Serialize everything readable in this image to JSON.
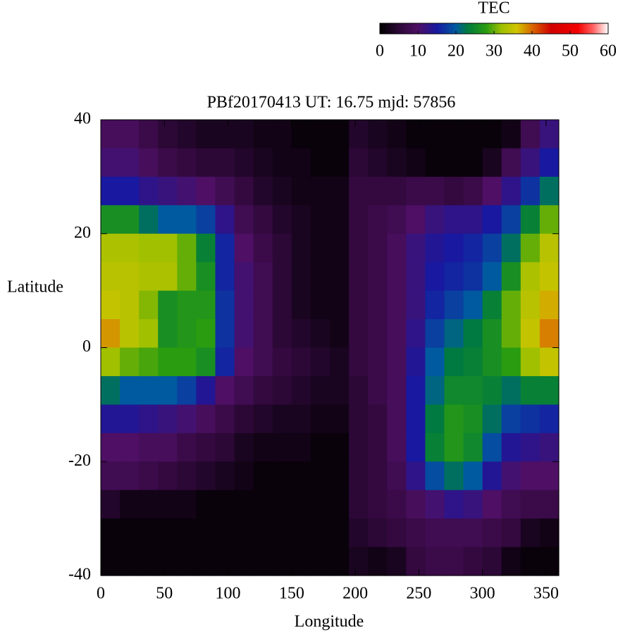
{
  "chart_data": {
    "type": "heatmap",
    "title": "PBf20170413  UT: 16.75  mjd: 57856",
    "x_label": "Longitude",
    "y_label": "Latitude",
    "xlim": [
      0,
      360
    ],
    "ylim": [
      -40,
      40
    ],
    "xticks": [
      0,
      50,
      100,
      150,
      200,
      250,
      300,
      350
    ],
    "yticks": [
      -40,
      -20,
      0,
      20,
      40
    ],
    "x": [
      7.5,
      22.5,
      37.5,
      52.5,
      67.5,
      82.5,
      97.5,
      112.5,
      127.5,
      142.5,
      157.5,
      172.5,
      187.5,
      202.5,
      217.5,
      232.5,
      247.5,
      262.5,
      277.5,
      292.5,
      307.5,
      322.5,
      337.5,
      352.5
    ],
    "y": [
      37.5,
      32.5,
      27.5,
      22.5,
      17.5,
      12.5,
      7.5,
      2.5,
      -2.5,
      -7.5,
      -12.5,
      -17.5,
      -22.5,
      -27.5,
      -32.5,
      -37.5
    ],
    "z": [
      [
        9,
        9,
        7,
        5,
        4,
        3,
        3,
        3,
        2,
        2,
        1,
        1,
        1,
        4,
        3,
        2,
        1,
        1,
        1,
        1,
        1,
        2,
        8,
        12
      ],
      [
        11,
        11,
        9,
        7,
        6,
        5,
        5,
        4,
        3,
        2,
        2,
        1,
        1,
        5,
        4,
        3,
        2,
        1,
        1,
        1,
        3,
        8,
        12,
        15
      ],
      [
        15,
        15,
        13,
        12,
        11,
        10,
        8,
        6,
        4,
        3,
        2,
        2,
        2,
        6,
        6,
        6,
        7,
        7,
        6,
        7,
        10,
        13,
        17,
        22
      ],
      [
        26,
        26,
        22,
        20,
        20,
        18,
        13,
        8,
        6,
        4,
        3,
        2,
        2,
        6,
        7,
        8,
        10,
        12,
        13,
        13,
        15,
        18,
        24,
        30
      ],
      [
        33,
        33,
        32,
        32,
        30,
        24,
        16,
        10,
        7,
        5,
        3,
        2,
        2,
        6,
        7,
        9,
        12,
        14,
        15,
        16,
        18,
        22,
        30,
        34
      ],
      [
        34,
        34,
        33,
        33,
        30,
        26,
        16,
        11,
        8,
        5,
        3,
        2,
        2,
        6,
        7,
        9,
        12,
        15,
        16,
        17,
        20,
        26,
        33,
        35
      ],
      [
        35,
        34,
        31,
        26,
        27,
        27,
        17,
        11,
        8,
        5,
        3,
        2,
        2,
        6,
        7,
        9,
        12,
        16,
        18,
        20,
        24,
        30,
        34,
        37
      ],
      [
        38,
        34,
        32,
        26,
        27,
        28,
        17,
        11,
        8,
        5,
        4,
        3,
        2,
        6,
        7,
        9,
        13,
        18,
        21,
        23,
        26,
        30,
        35,
        39
      ],
      [
        32,
        30,
        29,
        28,
        28,
        26,
        16,
        10,
        8,
        6,
        5,
        4,
        3,
        6,
        7,
        9,
        14,
        20,
        23,
        24,
        26,
        28,
        32,
        35
      ],
      [
        22,
        20,
        20,
        20,
        18,
        14,
        10,
        8,
        6,
        5,
        4,
        3,
        3,
        5,
        7,
        9,
        15,
        21,
        25,
        25,
        24,
        22,
        24,
        24
      ],
      [
        14,
        14,
        13,
        12,
        11,
        9,
        7,
        5,
        4,
        3,
        3,
        2,
        2,
        5,
        6,
        9,
        15,
        23,
        27,
        26,
        22,
        18,
        17,
        16
      ],
      [
        10,
        10,
        9,
        9,
        7,
        6,
        5,
        3,
        2,
        2,
        2,
        1,
        1,
        5,
        6,
        9,
        15,
        24,
        27,
        25,
        19,
        14,
        13,
        12
      ],
      [
        8,
        8,
        7,
        6,
        5,
        4,
        3,
        2,
        1,
        1,
        1,
        1,
        1,
        5,
        6,
        8,
        13,
        19,
        22,
        20,
        14,
        11,
        10,
        10
      ],
      [
        4,
        2,
        2,
        2,
        2,
        1,
        1,
        1,
        1,
        1,
        1,
        1,
        1,
        5,
        6,
        7,
        9,
        11,
        13,
        12,
        10,
        8,
        7,
        7
      ],
      [
        1,
        1,
        1,
        1,
        1,
        1,
        1,
        1,
        1,
        1,
        1,
        1,
        1,
        4,
        5,
        6,
        7,
        8,
        8,
        8,
        7,
        6,
        3,
        2
      ],
      [
        1,
        1,
        1,
        1,
        1,
        1,
        1,
        1,
        1,
        1,
        1,
        1,
        1,
        3,
        2,
        3,
        6,
        7,
        7,
        6,
        5,
        2,
        1,
        1
      ]
    ],
    "colorbar": {
      "label": "TEC",
      "lim": [
        0,
        60
      ],
      "ticks": [
        0,
        10,
        20,
        30,
        40,
        50,
        60
      ],
      "stops": [
        [
          0,
          "#000000"
        ],
        [
          5,
          "#2c0836"
        ],
        [
          10,
          "#4e0f64"
        ],
        [
          15,
          "#1818a0"
        ],
        [
          20,
          "#005aa0"
        ],
        [
          23,
          "#007a40"
        ],
        [
          28,
          "#2a9c10"
        ],
        [
          32,
          "#a0c000"
        ],
        [
          36,
          "#d0c400"
        ],
        [
          40,
          "#d86800"
        ],
        [
          45,
          "#d00000"
        ],
        [
          52,
          "#f40000"
        ],
        [
          56,
          "#ff6060"
        ],
        [
          60,
          "#ffffff"
        ]
      ]
    }
  }
}
